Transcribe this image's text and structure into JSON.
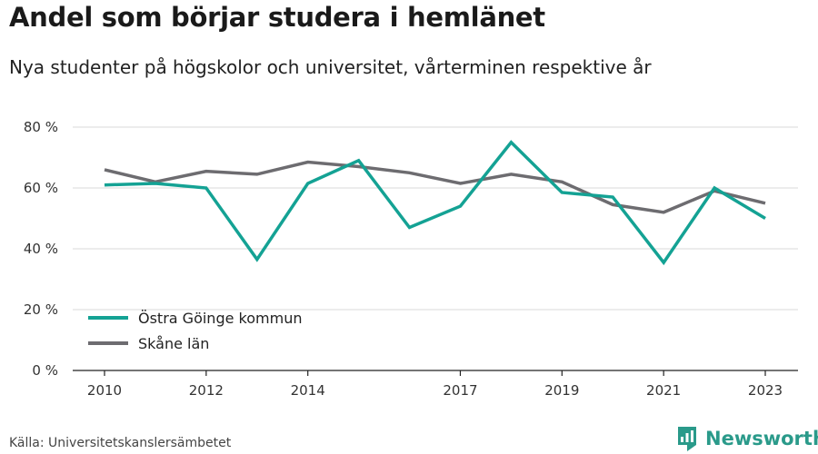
{
  "page": {
    "title": "Andel som börjar studera i hemlänet",
    "subtitle": "Nya studenter på högskolor och universitet, vårterminen respektive år",
    "source": "Källa: Universitetskanslersämbetet",
    "brand": "Newsworthy"
  },
  "colors": {
    "series_1": "#14a294",
    "series_2": "#6d6c70",
    "grid": "#d9d9d9",
    "axis": "#222222",
    "brand": "#2a9a8a"
  },
  "chart_data": {
    "type": "line",
    "title": "Andel som börjar studera i hemlänet",
    "subtitle": "Nya studenter på högskolor och universitet, vårterminen respektive år",
    "x": [
      2010,
      2011,
      2012,
      2013,
      2014,
      2015,
      2016,
      2017,
      2018,
      2019,
      2020,
      2021,
      2022,
      2023
    ],
    "xticks": [
      2010,
      2012,
      2014,
      2017,
      2019,
      2021,
      2023
    ],
    "yticks": [
      0,
      20,
      40,
      60,
      80
    ],
    "ytick_labels": [
      "0 %",
      "20 %",
      "40 %",
      "60 %",
      "80 %"
    ],
    "xlim": [
      2010,
      2023
    ],
    "ylim": [
      0,
      80
    ],
    "grid": true,
    "legend_position": "bottom-left",
    "series": [
      {
        "name": "Östra Göinge kommun",
        "values": [
          61,
          61.5,
          60,
          36.5,
          61.5,
          69,
          47,
          54,
          75,
          58.5,
          57,
          35.5,
          60,
          50
        ]
      },
      {
        "name": "Skåne län",
        "values": [
          66,
          62,
          65.5,
          64.5,
          68.5,
          67,
          65,
          61.5,
          64.5,
          62,
          54.5,
          52,
          59,
          55
        ]
      }
    ]
  }
}
